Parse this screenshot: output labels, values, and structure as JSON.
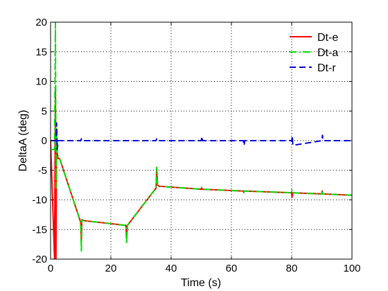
{
  "chart_data": {
    "type": "line",
    "title": "",
    "xlabel": "Time (s)",
    "ylabel": "DeltaA (deg)",
    "xlim": [
      0,
      100
    ],
    "ylim": [
      -20,
      20
    ],
    "xticks": [
      0,
      20,
      40,
      60,
      80,
      100
    ],
    "yticks": [
      -20,
      -15,
      -10,
      -5,
      0,
      5,
      10,
      15,
      20
    ],
    "grid": true,
    "legend_position": "top-right",
    "series": [
      {
        "name": "Dt-e",
        "color": "#ff0000",
        "style": "solid",
        "x": [
          0,
          1.3,
          1.6,
          1.8,
          2.0,
          2.2,
          2.5,
          3,
          10,
          10.2,
          10.4,
          11,
          25,
          25.2,
          25.5,
          35,
          35.2,
          35.5,
          36,
          50,
          50.1,
          50.3,
          64,
          64.1,
          64.3,
          80,
          80.1,
          80.3,
          90,
          90.1,
          90.3,
          100
        ],
        "y": [
          0,
          -20,
          9,
          -20,
          0.5,
          -2,
          -3,
          -3,
          -13.8,
          -17,
          -13.3,
          -13.5,
          -14.3,
          -16.5,
          -14.3,
          -8,
          -4.5,
          -7.5,
          -7.7,
          -8.2,
          -7.9,
          -8.2,
          -8.5,
          -8.8,
          -8.5,
          -8.8,
          -9.6,
          -8.8,
          -9,
          -8.5,
          -9,
          -9.2
        ]
      },
      {
        "name": "Dt-a",
        "color": "#00dd00",
        "style": "dash-dot",
        "x": [
          0,
          1.3,
          1.6,
          1.8,
          2.0,
          2.2,
          2.5,
          3,
          10,
          10.2,
          10.4,
          11,
          25,
          25.2,
          25.5,
          35,
          35.2,
          35.5,
          36,
          50,
          50.1,
          50.3,
          64,
          64.1,
          64.3,
          80,
          80.1,
          80.3,
          90,
          90.1,
          90.3,
          100
        ],
        "y": [
          -1.5,
          -1.5,
          20,
          -8,
          2,
          -2,
          -3,
          -3,
          -13.8,
          -18.8,
          -13.3,
          -13.5,
          -14.3,
          -17.5,
          -14.3,
          -8,
          -4.5,
          -7.5,
          -7.7,
          -8.2,
          -7.9,
          -8.2,
          -8.5,
          -8.8,
          -8.5,
          -8.8,
          -8.3,
          -8.8,
          -9,
          -8.7,
          -9,
          -9.2
        ]
      },
      {
        "name": "Dt-r",
        "color": "#0000dd",
        "style": "dashed",
        "x": [
          0,
          1.8,
          2.0,
          2.2,
          2.5,
          10,
          10.2,
          10.4,
          35,
          35.2,
          35.4,
          50,
          50.2,
          50.4,
          64,
          64.2,
          64.4,
          80,
          80.2,
          80.4,
          90,
          90.2,
          90.4,
          100
        ],
        "y": [
          0,
          0,
          3,
          -1.5,
          0,
          0,
          0.3,
          0,
          0,
          0.3,
          0,
          0,
          0.7,
          0,
          0,
          -0.8,
          0,
          0,
          0.8,
          -0.8,
          0,
          0.9,
          0,
          0
        ]
      }
    ]
  }
}
